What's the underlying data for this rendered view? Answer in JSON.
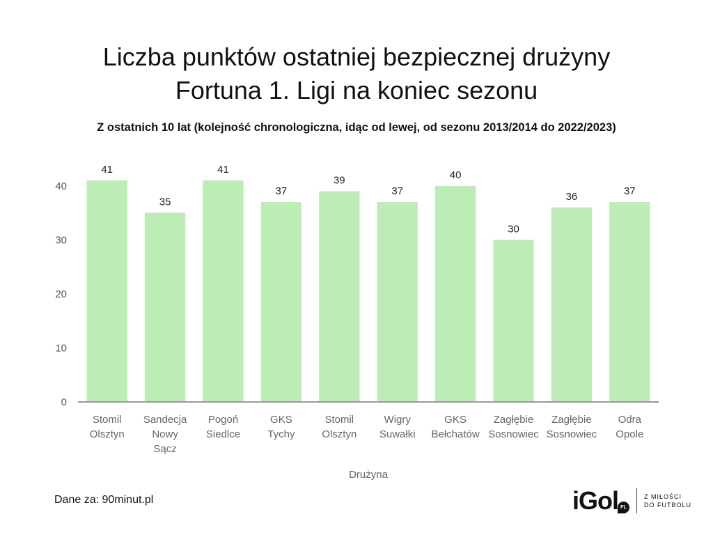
{
  "chart_data": {
    "type": "bar",
    "title_lines": [
      "Liczba punktów ostatniej bezpiecznej drużyny",
      "Fortuna 1. Ligi na koniec sezonu"
    ],
    "subtitle": "Z ostatnich 10 lat (kolejność chronologiczna, idąc od lewej, od sezonu 2013/2014 do 2022/2023)",
    "xlabel": "Drużyna",
    "ylabel": "",
    "ylim": [
      0,
      45
    ],
    "yticks": [
      0,
      10,
      20,
      30,
      40
    ],
    "grid": false,
    "bar_color": "#bdecb6",
    "categories": [
      [
        "Stomil",
        "Olsztyn"
      ],
      [
        "Sandecja",
        "Nowy",
        "Sącz"
      ],
      [
        "Pogoń",
        "Siedlce"
      ],
      [
        "GKS",
        "Tychy"
      ],
      [
        "Stomil",
        "Olsztyn"
      ],
      [
        "Wigry",
        "Suwałki"
      ],
      [
        "GKS",
        "Bełchatów"
      ],
      [
        "Zagłębie",
        "Sosnowiec"
      ],
      [
        "Zagłębie",
        "Sosnowiec"
      ],
      [
        "Odra",
        "Opole"
      ]
    ],
    "values": [
      41,
      35,
      41,
      37,
      39,
      37,
      40,
      30,
      36,
      37
    ]
  },
  "footer": {
    "source": "Dane za: 90minut.pl"
  },
  "logo": {
    "mark": "iGol",
    "badge": "PL",
    "tagline_lines": [
      "Z MIŁOŚCI",
      "DO FUTBOLU"
    ]
  }
}
